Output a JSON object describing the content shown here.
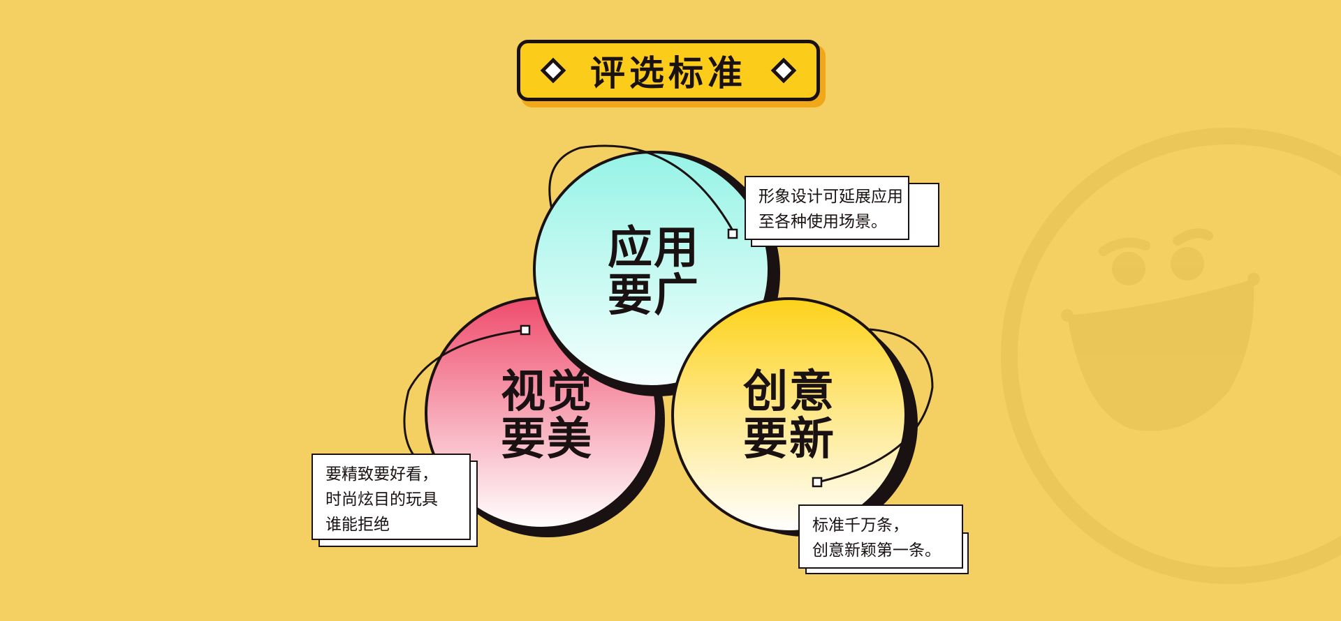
{
  "title": "评选标准",
  "colors": {
    "background": "#f4d062",
    "title_fill": "#fbcd1a",
    "outline": "#1a1212",
    "circle_application_top": "#96f3e6",
    "circle_visual_top": "#ef4c6c",
    "circle_creative_top": "#fdd21a"
  },
  "circles": {
    "application": {
      "line1": "应用",
      "line2": "要广"
    },
    "visual": {
      "line1": "视觉",
      "line2": "要美"
    },
    "creative": {
      "line1": "创意",
      "line2": "要新"
    }
  },
  "notes": {
    "application": {
      "line1": "形象设计可延展应用",
      "line2": "至各种使用场景。"
    },
    "visual": {
      "line1": "要精致要好看，",
      "line2": "时尚炫目的玩具",
      "line3": "谁能拒绝"
    },
    "creative": {
      "line1": "标准千万条，",
      "line2": "创意新颖第一条。"
    }
  },
  "decoration": {
    "mascot": "smiley-face-watermark"
  }
}
